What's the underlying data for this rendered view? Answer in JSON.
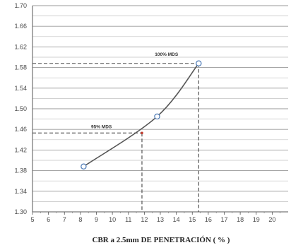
{
  "chart_data": {
    "type": "line",
    "title": "",
    "xlabel": "CBR a 2.5mm DE PENETRACIÓN  ( % )",
    "ylabel": "",
    "xlim": [
      5,
      21
    ],
    "ylim": [
      1.3,
      1.7
    ],
    "x_ticks": [
      "5",
      "6",
      "7",
      "8",
      "9",
      "10",
      "11",
      "12",
      "13",
      "14",
      "15",
      "16",
      "17",
      "18",
      "19",
      "20"
    ],
    "y_ticks": [
      "1.30",
      "1.34",
      "1.38",
      "1.42",
      "1.46",
      "1.50",
      "1.54",
      "1.58",
      "1.62",
      "1.66",
      "1.70"
    ],
    "grid": "horizontal",
    "series": [
      {
        "points": [
          [
            8.2,
            1.388
          ],
          [
            12.8,
            1.485
          ],
          [
            15.4,
            1.588
          ]
        ],
        "color": "#555555"
      }
    ],
    "annotations": [
      {
        "text": "100% MDS",
        "x": 15.4,
        "y": 1.588
      },
      {
        "text": "95% MDS",
        "x": 11.85,
        "y": 1.453
      }
    ]
  }
}
